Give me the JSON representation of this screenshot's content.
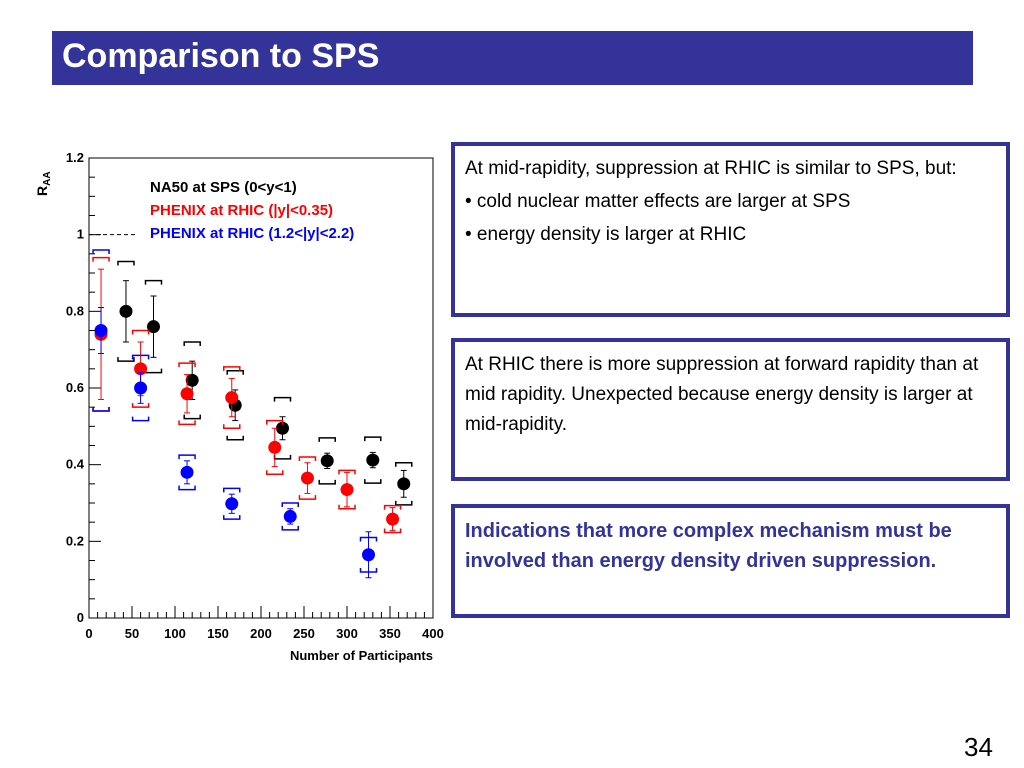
{
  "slide": {
    "title": "Comparison to SPS",
    "page_number": "34",
    "colors": {
      "title_bg": "#333399",
      "accent": "#333399"
    }
  },
  "boxes": {
    "box1": {
      "intro": "At mid-rapidity, suppression at RHIC is similar to SPS, but:",
      "bullets": [
        "• cold nuclear matter effects are larger at SPS",
        "• energy density is larger at RHIC"
      ]
    },
    "box2": {
      "text": "At RHIC there is more suppression at forward rapidity than at mid rapidity. Unexpected because energy density is larger at mid-rapidity."
    },
    "box3": {
      "text": "Indications that more complex mechanism must be involved than energy density driven suppression."
    }
  },
  "chart_data": {
    "type": "scatter",
    "title": "",
    "xlabel": "Number of Participants",
    "ylabel": "R",
    "ylabel_sub": "AA",
    "xlim": [
      0,
      400
    ],
    "ylim": [
      0,
      1.2
    ],
    "xticks": [
      0,
      50,
      100,
      150,
      200,
      250,
      300,
      350,
      400
    ],
    "yticks": [
      0,
      0.2,
      0.4,
      0.6,
      0.8,
      1,
      1.2
    ],
    "ytick_labels": [
      "0",
      "0.2",
      "0.4",
      "0.6",
      "0.8",
      "1",
      "1.2"
    ],
    "reference_line": 1.0,
    "legend_position": "top-left",
    "series": [
      {
        "name": "NA50 at SPS (0<y<1)",
        "color": "#000000",
        "points": [
          {
            "x": 43,
            "y": 0.8,
            "err": 0.08,
            "sys": 0.13
          },
          {
            "x": 75,
            "y": 0.76,
            "err": 0.08,
            "sys": 0.12
          },
          {
            "x": 120,
            "y": 0.62,
            "err": 0.05,
            "sys": 0.1
          },
          {
            "x": 170,
            "y": 0.555,
            "err": 0.04,
            "sys": 0.09
          },
          {
            "x": 225,
            "y": 0.495,
            "err": 0.03,
            "sys": 0.08
          },
          {
            "x": 277,
            "y": 0.41,
            "err": 0.02,
            "sys": 0.06
          },
          {
            "x": 330,
            "y": 0.412,
            "err": 0.02,
            "sys": 0.06
          },
          {
            "x": 366,
            "y": 0.35,
            "err": 0.035,
            "sys": 0.055
          }
        ]
      },
      {
        "name": "PHENIX at RHIC (|y|<0.35)",
        "color": "#ff0000",
        "points": [
          {
            "x": 14,
            "y": 0.74,
            "err": 0.17,
            "sys": 0.2
          },
          {
            "x": 60,
            "y": 0.65,
            "err": 0.07,
            "sys": 0.1
          },
          {
            "x": 114,
            "y": 0.585,
            "err": 0.05,
            "sys": 0.08
          },
          {
            "x": 166,
            "y": 0.575,
            "err": 0.05,
            "sys": 0.08
          },
          {
            "x": 216,
            "y": 0.445,
            "err": 0.05,
            "sys": 0.07
          },
          {
            "x": 254,
            "y": 0.365,
            "err": 0.04,
            "sys": 0.055
          },
          {
            "x": 300,
            "y": 0.335,
            "err": 0.045,
            "sys": 0.05
          },
          {
            "x": 353,
            "y": 0.258,
            "err": 0.03,
            "sys": 0.035
          }
        ]
      },
      {
        "name": "PHENIX at RHIC (1.2<|y|<2.2)",
        "color": "#0000ff",
        "points": [
          {
            "x": 14,
            "y": 0.75,
            "err": 0.06,
            "sys": 0.21
          },
          {
            "x": 60,
            "y": 0.6,
            "err": 0.04,
            "sys": 0.085
          },
          {
            "x": 114,
            "y": 0.38,
            "err": 0.03,
            "sys": 0.045
          },
          {
            "x": 166,
            "y": 0.298,
            "err": 0.025,
            "sys": 0.04
          },
          {
            "x": 234,
            "y": 0.265,
            "err": 0.02,
            "sys": 0.035
          },
          {
            "x": 325,
            "y": 0.165,
            "err": 0.06,
            "sys": 0.045
          }
        ]
      }
    ]
  }
}
